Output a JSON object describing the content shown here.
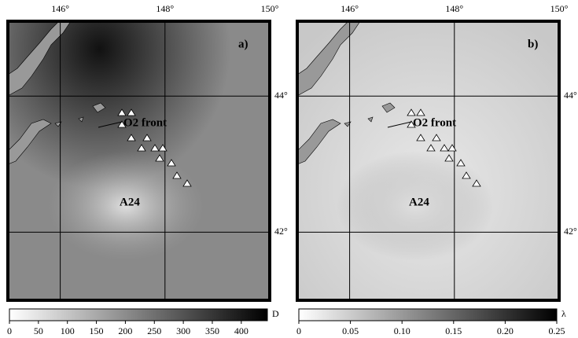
{
  "panels": [
    {
      "label": "a)",
      "annotations": [
        "O2 front",
        "A24"
      ],
      "colorbar": {
        "label": "D",
        "lim": [
          0,
          445
        ],
        "ticks": [
          0,
          50,
          100,
          150,
          200,
          250,
          300,
          350,
          400
        ]
      }
    },
    {
      "label": "b)",
      "annotations": [
        "O2 front",
        "A24"
      ],
      "colorbar": {
        "label": "λ",
        "lim": [
          0,
          0.25
        ],
        "ticks": [
          0,
          0.05,
          {
            "value": 0.1,
            "label": "0.10"
          },
          0.15,
          {
            "value": 0.2,
            "label": "0.20"
          },
          0.25
        ]
      }
    }
  ],
  "lonlim": [
    145,
    150
  ],
  "latlim": [
    41,
    45.1
  ],
  "lon_ticks": [
    {
      "value": 146,
      "label": "146°"
    },
    {
      "value": 148,
      "label": "148°"
    },
    {
      "value": 150,
      "label": "150°"
    }
  ],
  "lat_ticks": [
    {
      "value": 44,
      "label": "44°"
    },
    {
      "value": 42,
      "label": "42°"
    }
  ]
}
